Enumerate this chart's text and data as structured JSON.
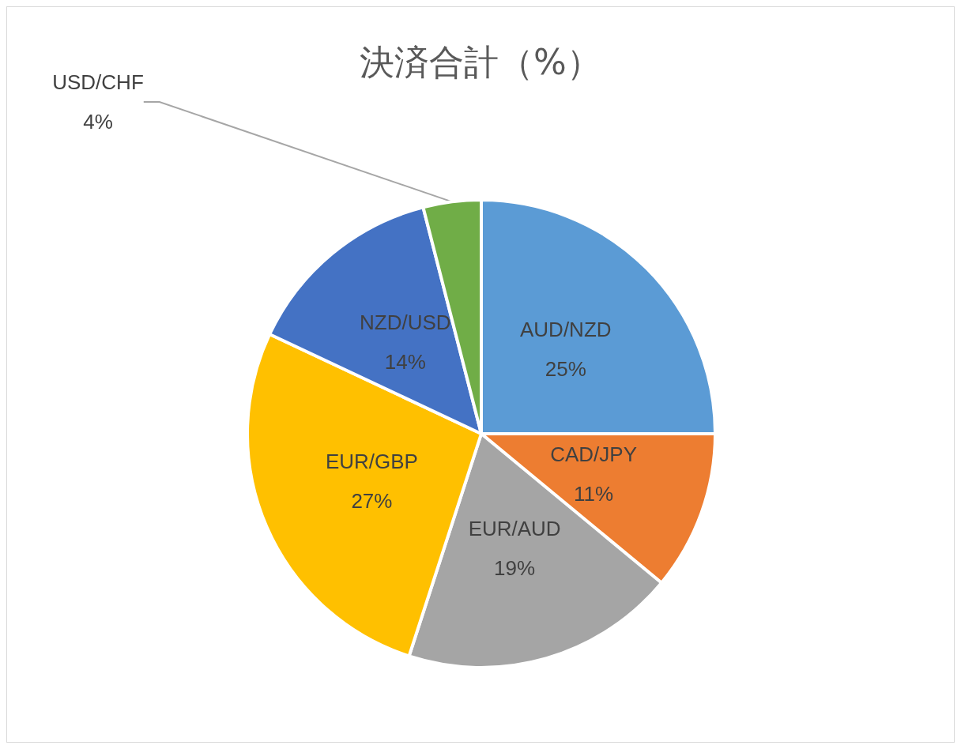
{
  "chart_data": {
    "type": "pie",
    "title": "決済合計（%）",
    "categories": [
      "AUD/NZD",
      "CAD/JPY",
      "EUR/AUD",
      "EUR/GBP",
      "NZD/USD",
      "USD/CHF"
    ],
    "values": [
      25,
      11,
      19,
      27,
      14,
      4
    ],
    "colors": [
      "#5b9bd5",
      "#ed7d31",
      "#a5a5a5",
      "#ffc000",
      "#4472c4",
      "#70ad47"
    ],
    "value_labels": [
      "25%",
      "11%",
      "19%",
      "27%",
      "14%",
      "4%"
    ],
    "legend": false
  }
}
